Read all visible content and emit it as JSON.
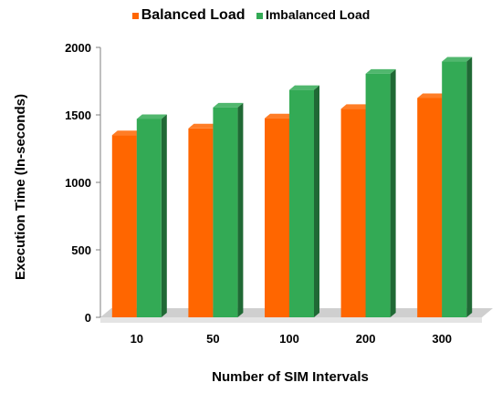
{
  "chart_data": {
    "type": "bar",
    "categories": [
      "10",
      "50",
      "100",
      "200",
      "300"
    ],
    "series": [
      {
        "name": "Balanced Load",
        "values": [
          1350,
          1400,
          1475,
          1545,
          1625
        ],
        "color": "#ff6600"
      },
      {
        "name": "Imbalanced Load",
        "values": [
          1470,
          1555,
          1685,
          1805,
          1895
        ],
        "color": "#33aa55"
      }
    ],
    "xlabel": "Number of SIM Intervals",
    "ylabel": "Execution Time (In-seconds)",
    "ylim": [
      0,
      2000
    ],
    "yticks": [
      "0",
      "500",
      "1000",
      "1500",
      "2000"
    ],
    "grid": false,
    "legend_position": "top",
    "style": "3d-bars"
  }
}
